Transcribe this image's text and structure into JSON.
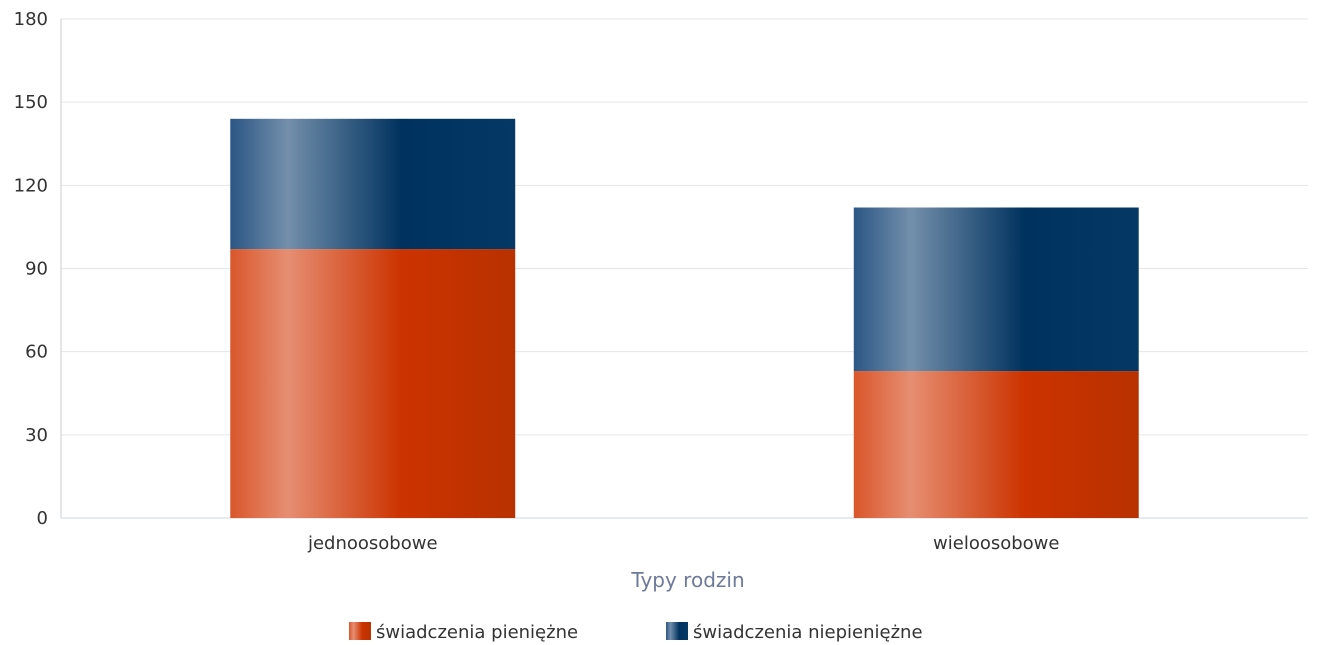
{
  "chart_data": {
    "type": "bar",
    "stacked": true,
    "title": "",
    "xlabel": "Typy rodzin",
    "ylabel": "",
    "categories": [
      "jednoosobowe",
      "wieloosobowe"
    ],
    "series": [
      {
        "name": "świadczenia pieniężne",
        "values": [
          97,
          53
        ],
        "color": "#d4380d"
      },
      {
        "name": "świadczenia niepieniężne",
        "values": [
          47,
          59
        ],
        "color": "#1f4e79"
      }
    ],
    "ylim": [
      0,
      180
    ],
    "yticks": [
      0,
      30,
      60,
      90,
      120,
      150,
      180
    ],
    "grid": true,
    "legend_position": "bottom-center"
  }
}
